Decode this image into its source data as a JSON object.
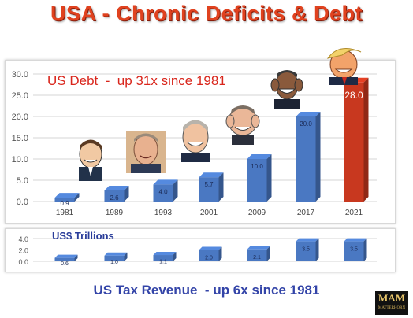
{
  "title": "USA - Chronic Deficits & Debt",
  "annotations": {
    "debt": "US Debt  -  up 31x since 1981",
    "units": "US$ Trillions",
    "revenue": "US Tax Revenue  - up 6x since 1981"
  },
  "logo": {
    "mark": "MAM",
    "text": "MATTERHORN"
  },
  "colors": {
    "bar": "#4a78c2",
    "bar_highlight": "#c8381f",
    "grid": "#d4d4d4",
    "title": "#e0421f",
    "debt_annotation": "#d9261c",
    "revenue_annotation": "#3344a8"
  },
  "chart_data": [
    {
      "type": "bar",
      "categories": [
        "1981",
        "1989",
        "1993",
        "2001",
        "2009",
        "2017",
        "2021"
      ],
      "values": [
        0.9,
        2.6,
        4.0,
        5.7,
        10.0,
        20.0,
        28.0
      ],
      "data_labels": [
        "0.9",
        "2.6",
        "4.0",
        "5.7",
        "10.0",
        "20.0",
        "28.0"
      ],
      "yticks": [
        "0.0",
        "5.0",
        "10.0",
        "15.0",
        "20.0",
        "25.0",
        "30.0"
      ],
      "ylim": [
        0,
        30
      ],
      "grid": true,
      "highlight_index": 6,
      "title": "",
      "xlabel": "",
      "ylabel": ""
    },
    {
      "type": "bar",
      "categories": [
        "1981",
        "1989",
        "1993",
        "2001",
        "2009",
        "2017",
        "2021"
      ],
      "values": [
        0.6,
        1.0,
        1.1,
        2.0,
        2.1,
        3.5,
        3.5
      ],
      "data_labels": [
        "0.6",
        "1.0",
        "1.1",
        "2.0",
        "2.1",
        "3.5",
        "3.5"
      ],
      "yticks": [
        "0.0",
        "2.0",
        "4.0"
      ],
      "ylim": [
        0,
        4
      ],
      "grid": true,
      "title": "",
      "xlabel": "",
      "ylabel": ""
    }
  ]
}
